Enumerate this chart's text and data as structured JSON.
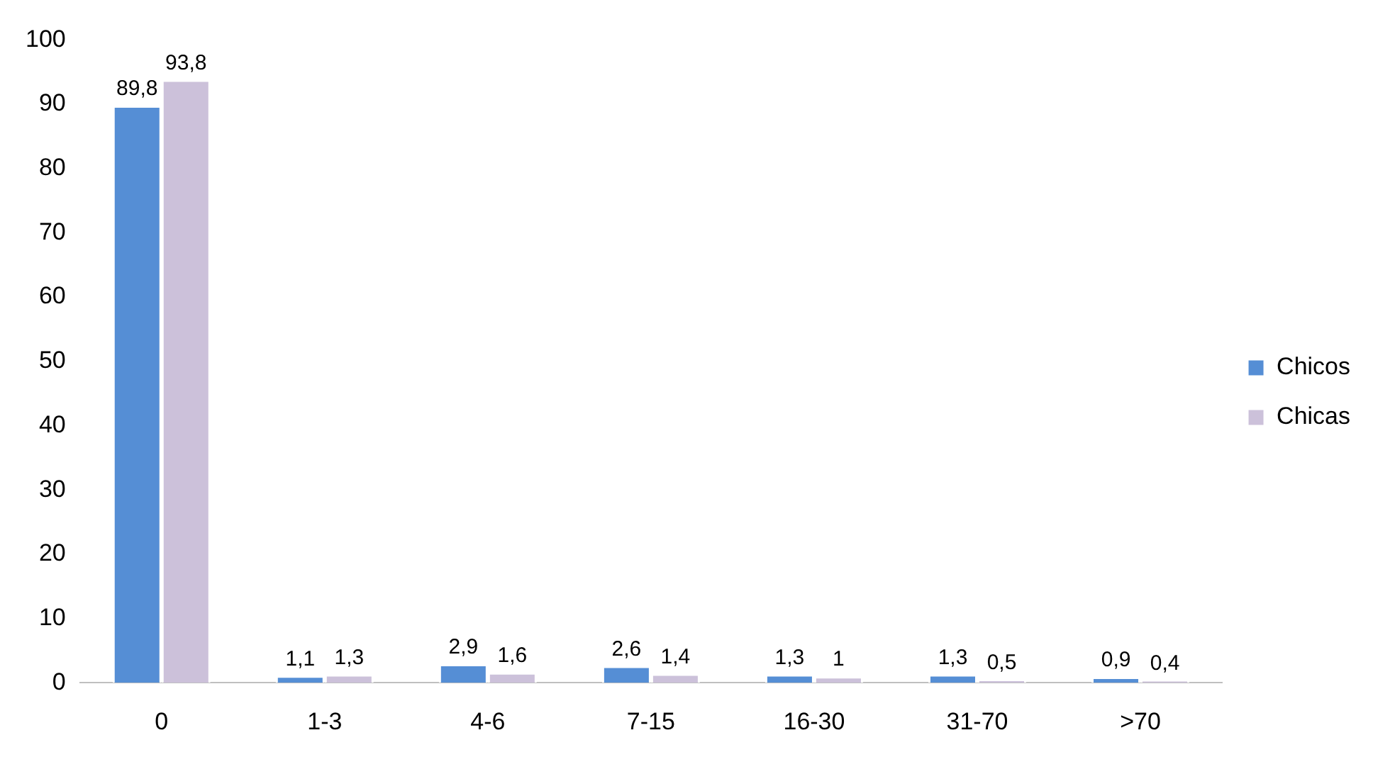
{
  "chart_data": {
    "type": "bar",
    "categories": [
      "0",
      "1-3",
      "4-6",
      "7-15",
      "16-30",
      "31-70",
      ">70"
    ],
    "series": [
      {
        "name": "Chicos",
        "color": "#558ed5",
        "values": [
          89.8,
          1.1,
          2.9,
          2.6,
          1.3,
          1.3,
          0.9
        ],
        "value_labels": [
          "89,8",
          "1,1",
          "2,9",
          "2,6",
          "1,3",
          "1,3",
          "0,9"
        ]
      },
      {
        "name": "Chicas",
        "color": "#ccc1da",
        "values": [
          93.8,
          1.3,
          1.6,
          1.4,
          1,
          0.5,
          0.4
        ],
        "value_labels": [
          "93,8",
          "1,3",
          "1,6",
          "1,4",
          "1",
          "0,5",
          "0,4"
        ]
      }
    ],
    "ylim": [
      0,
      100
    ],
    "yticks": [
      0,
      10,
      20,
      30,
      40,
      50,
      60,
      70,
      80,
      90,
      100
    ],
    "grid": false,
    "legend": "right"
  }
}
